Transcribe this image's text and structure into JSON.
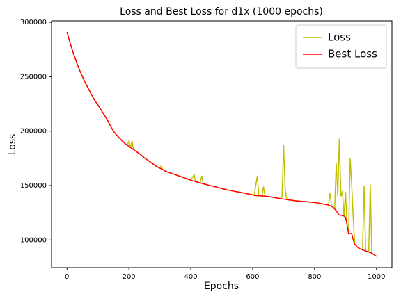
{
  "chart_data": {
    "type": "line",
    "title": "Loss and Best Loss for d1x (1000 epochs)",
    "xlabel": "Epochs",
    "ylabel": "Loss",
    "legend": "upper right",
    "x": [
      0,
      10,
      20,
      30,
      40,
      50,
      60,
      70,
      80,
      90,
      100,
      110,
      120,
      130,
      140,
      150,
      160,
      170,
      180,
      190,
      195,
      200,
      205,
      210,
      215,
      220,
      230,
      240,
      250,
      260,
      270,
      280,
      290,
      300,
      305,
      310,
      320,
      330,
      340,
      350,
      360,
      370,
      380,
      390,
      400,
      411,
      415,
      420,
      430,
      436,
      440,
      450,
      460,
      470,
      480,
      490,
      500,
      520,
      540,
      560,
      580,
      600,
      605,
      610,
      615,
      620,
      630,
      635,
      640,
      650,
      660,
      670,
      680,
      690,
      695,
      700,
      705,
      710,
      720,
      730,
      740,
      760,
      780,
      800,
      820,
      840,
      845,
      850,
      855,
      860,
      865,
      870,
      875,
      880,
      885,
      890,
      895,
      900,
      905,
      910,
      915,
      920,
      925,
      930,
      940,
      950,
      955,
      960,
      965,
      970,
      975,
      980,
      985,
      990,
      1000
    ],
    "series": [
      {
        "name": "Loss",
        "color": "#bfbf00",
        "values": [
          291000,
          281000,
          272000,
          264000,
          256500,
          250000,
          244000,
          238500,
          233000,
          228000,
          224000,
          219500,
          215000,
          210500,
          205000,
          200000,
          196500,
          193500,
          190500,
          188000,
          187000,
          191000,
          185000,
          191000,
          183000,
          182000,
          180000,
          178000,
          175500,
          173500,
          171500,
          169500,
          167500,
          166000,
          168000,
          164500,
          163000,
          162000,
          161000,
          160000,
          159000,
          158000,
          157000,
          156000,
          155000,
          160000,
          153700,
          153300,
          152500,
          159000,
          151700,
          151000,
          150200,
          149500,
          148800,
          148000,
          147300,
          146000,
          144800,
          143800,
          142700,
          141500,
          141000,
          150000,
          159000,
          140600,
          140500,
          149000,
          140300,
          140000,
          139500,
          139000,
          138500,
          138000,
          140000,
          187000,
          147000,
          137200,
          136800,
          136400,
          136000,
          135500,
          135000,
          134500,
          133500,
          132500,
          132000,
          143000,
          131000,
          130000,
          128500,
          171000,
          140000,
          193000,
          140000,
          145000,
          122000,
          144000,
          114000,
          106000,
          175000,
          150000,
          120000,
          96000,
          93000,
          91500,
          91000,
          150000,
          90000,
          89500,
          89000,
          151000,
          88000,
          87000,
          85000
        ]
      },
      {
        "name": "Best Loss",
        "color": "#ff0000",
        "values": [
          291000,
          281000,
          272000,
          264000,
          256500,
          250000,
          244000,
          238500,
          233000,
          228000,
          224000,
          219500,
          215000,
          210500,
          205000,
          200000,
          196500,
          193500,
          190500,
          188000,
          187000,
          186000,
          185000,
          184000,
          183000,
          182000,
          180000,
          178000,
          175500,
          173500,
          171500,
          169500,
          167500,
          166000,
          165300,
          164500,
          163000,
          162000,
          161000,
          160000,
          159000,
          158000,
          157000,
          156000,
          155000,
          154000,
          153700,
          153300,
          152500,
          152000,
          151700,
          151000,
          150200,
          149500,
          148800,
          148000,
          147300,
          146000,
          144800,
          143800,
          142700,
          141500,
          141000,
          140800,
          140700,
          140600,
          140500,
          140400,
          140300,
          140000,
          139500,
          139000,
          138500,
          138000,
          137800,
          137600,
          137400,
          137200,
          136800,
          136400,
          136000,
          135500,
          135000,
          134500,
          133500,
          132500,
          132000,
          131500,
          131000,
          130000,
          128500,
          127000,
          124500,
          123000,
          122800,
          122500,
          122000,
          121000,
          114000,
          106000,
          106000,
          106000,
          100000,
          96000,
          93000,
          91500,
          91000,
          90500,
          90000,
          89500,
          89000,
          88500,
          88000,
          87000,
          85000
        ]
      }
    ],
    "xlim": [
      -50,
      1050
    ],
    "xticks": [
      0,
      200,
      400,
      600,
      800,
      1000
    ],
    "ylim": [
      74700,
      301300
    ],
    "yticks": [
      100000,
      150000,
      200000,
      250000,
      300000
    ]
  }
}
